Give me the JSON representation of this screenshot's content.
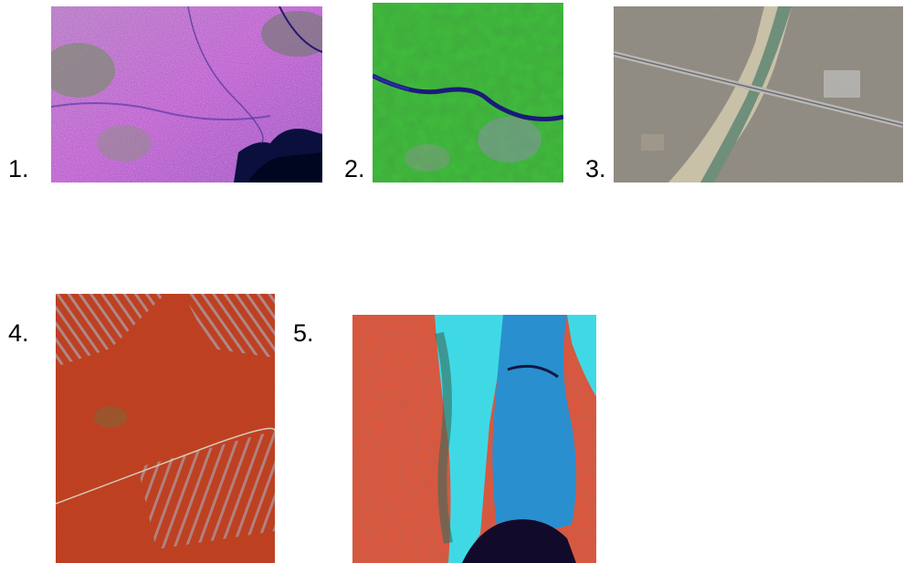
{
  "panels": [
    {
      "label": "1.",
      "description_icon": "false-color-coastal-city-satellite-image"
    },
    {
      "label": "2.",
      "description_icon": "green-forest-river-satellite-image"
    },
    {
      "label": "3.",
      "description_icon": "true-color-urban-bridge-river-satellite-image"
    },
    {
      "label": "4.",
      "description_icon": "red-infrared-deforestation-satellite-image"
    },
    {
      "label": "5.",
      "description_icon": "red-cyan-infrared-lake-valley-satellite-image"
    }
  ],
  "colors": {
    "magenta": "#b35cc4",
    "deep_water": "#0b0f3d",
    "forest_green": "#3fbf3a",
    "urban_gray": "#8f8a80",
    "infrared_red": "#c23a1f",
    "cyan": "#3fd9e6"
  }
}
